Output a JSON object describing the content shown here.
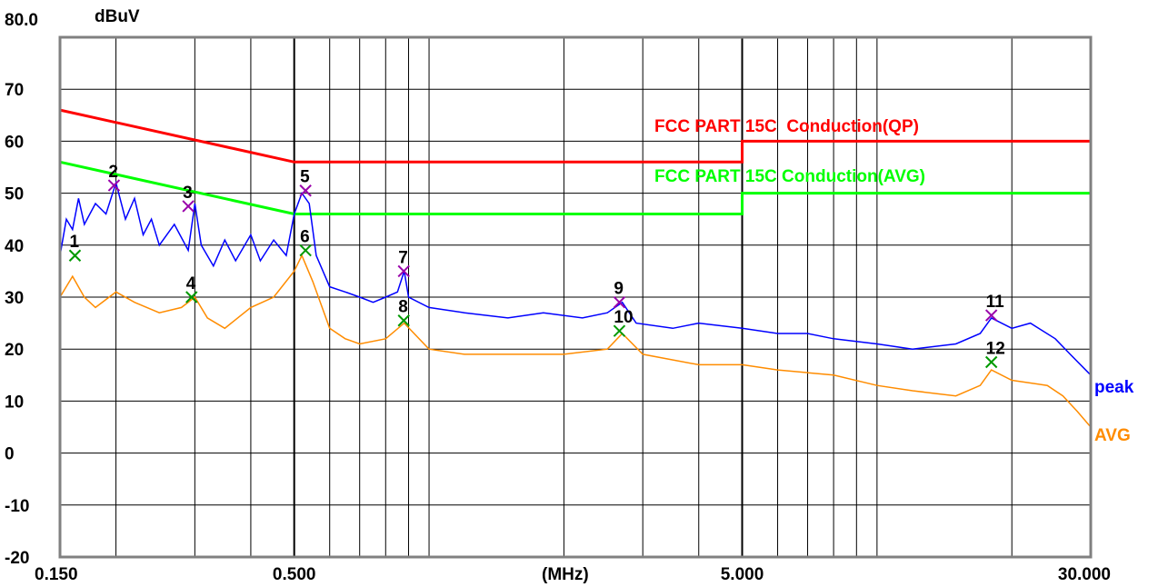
{
  "chart_data": {
    "type": "line",
    "ylabel": "dBuV",
    "xlabel": "(MHz)",
    "x_scale": "log",
    "xlim": [
      0.15,
      30
    ],
    "ylim": [
      -20,
      80
    ],
    "y_top_label": "80.0",
    "y_ticks": [
      "70",
      "60",
      "50",
      "40",
      "30",
      "20",
      "10",
      "0",
      "-10",
      "-20"
    ],
    "x_tick_labels": [
      {
        "value": 0.15,
        "label": "0.150"
      },
      {
        "value": 0.5,
        "label": "0.500"
      },
      {
        "value": 5,
        "label": "5.000"
      },
      {
        "value": 30,
        "label": "30.000"
      }
    ],
    "grid": true,
    "limits": [
      {
        "name": "FCC PART 15C  Conduction(QP)",
        "color": "#ff0000",
        "points": [
          [
            0.15,
            66
          ],
          [
            0.5,
            56
          ],
          [
            5,
            56
          ],
          [
            5,
            60
          ],
          [
            30,
            60
          ]
        ]
      },
      {
        "name": "FCC PART 15C Conduction(AVG)",
        "color": "#00ff00",
        "points": [
          [
            0.15,
            56
          ],
          [
            0.5,
            46
          ],
          [
            5,
            46
          ],
          [
            5,
            50
          ],
          [
            30,
            50
          ]
        ]
      }
    ],
    "series": [
      {
        "name": "peak",
        "color": "#0000ff",
        "points": [
          [
            0.15,
            38
          ],
          [
            0.155,
            45
          ],
          [
            0.16,
            43
          ],
          [
            0.165,
            49
          ],
          [
            0.17,
            44
          ],
          [
            0.18,
            48
          ],
          [
            0.19,
            46
          ],
          [
            0.2,
            52
          ],
          [
            0.21,
            45
          ],
          [
            0.22,
            49
          ],
          [
            0.23,
            42
          ],
          [
            0.24,
            45
          ],
          [
            0.25,
            40
          ],
          [
            0.27,
            44
          ],
          [
            0.29,
            39
          ],
          [
            0.3,
            48
          ],
          [
            0.31,
            40
          ],
          [
            0.33,
            36
          ],
          [
            0.35,
            41
          ],
          [
            0.37,
            37
          ],
          [
            0.4,
            42
          ],
          [
            0.42,
            37
          ],
          [
            0.45,
            41
          ],
          [
            0.48,
            38
          ],
          [
            0.5,
            46
          ],
          [
            0.52,
            50
          ],
          [
            0.54,
            48
          ],
          [
            0.56,
            38
          ],
          [
            0.6,
            32
          ],
          [
            0.65,
            31
          ],
          [
            0.7,
            30
          ],
          [
            0.75,
            29
          ],
          [
            0.8,
            30
          ],
          [
            0.85,
            31
          ],
          [
            0.88,
            35
          ],
          [
            0.9,
            30
          ],
          [
            1.0,
            28
          ],
          [
            1.2,
            27
          ],
          [
            1.5,
            26
          ],
          [
            1.8,
            27
          ],
          [
            2.2,
            26
          ],
          [
            2.5,
            27
          ],
          [
            2.7,
            29
          ],
          [
            2.9,
            25
          ],
          [
            3.5,
            24
          ],
          [
            4.0,
            25
          ],
          [
            5.0,
            24
          ],
          [
            6.0,
            23
          ],
          [
            7.0,
            23
          ],
          [
            8.0,
            22
          ],
          [
            10.0,
            21
          ],
          [
            12.0,
            20
          ],
          [
            15.0,
            21
          ],
          [
            17.0,
            23
          ],
          [
            18.0,
            26
          ],
          [
            20.0,
            24
          ],
          [
            22.0,
            25
          ],
          [
            25.0,
            22
          ],
          [
            27.0,
            19
          ],
          [
            30.0,
            15
          ]
        ]
      },
      {
        "name": "AVG",
        "color": "#ff8c00",
        "points": [
          [
            0.15,
            30
          ],
          [
            0.16,
            34
          ],
          [
            0.17,
            30
          ],
          [
            0.18,
            28
          ],
          [
            0.2,
            31
          ],
          [
            0.22,
            29
          ],
          [
            0.25,
            27
          ],
          [
            0.28,
            28
          ],
          [
            0.3,
            30
          ],
          [
            0.32,
            26
          ],
          [
            0.35,
            24
          ],
          [
            0.4,
            28
          ],
          [
            0.45,
            30
          ],
          [
            0.5,
            35
          ],
          [
            0.52,
            38
          ],
          [
            0.55,
            33
          ],
          [
            0.6,
            24
          ],
          [
            0.65,
            22
          ],
          [
            0.7,
            21
          ],
          [
            0.8,
            22
          ],
          [
            0.88,
            25
          ],
          [
            1.0,
            20
          ],
          [
            1.2,
            19
          ],
          [
            1.5,
            19
          ],
          [
            2.0,
            19
          ],
          [
            2.5,
            20
          ],
          [
            2.7,
            23
          ],
          [
            3.0,
            19
          ],
          [
            4.0,
            17
          ],
          [
            5.0,
            17
          ],
          [
            6.0,
            16
          ],
          [
            8.0,
            15
          ],
          [
            10.0,
            13
          ],
          [
            12.0,
            12
          ],
          [
            15.0,
            11
          ],
          [
            17.0,
            13
          ],
          [
            18.0,
            16
          ],
          [
            20.0,
            14
          ],
          [
            24.0,
            13
          ],
          [
            26.0,
            11
          ],
          [
            28.0,
            8
          ],
          [
            30.0,
            5
          ]
        ]
      }
    ],
    "markers": [
      {
        "label": "1",
        "freq": 0.162,
        "level": 38.0,
        "type": "avg"
      },
      {
        "label": "2",
        "freq": 0.198,
        "level": 51.5,
        "type": "peak"
      },
      {
        "label": "3",
        "freq": 0.29,
        "level": 47.5,
        "type": "peak"
      },
      {
        "label": "4",
        "freq": 0.295,
        "level": 30.0,
        "type": "avg"
      },
      {
        "label": "5",
        "freq": 0.53,
        "level": 50.5,
        "type": "peak"
      },
      {
        "label": "6",
        "freq": 0.53,
        "level": 39.0,
        "type": "avg"
      },
      {
        "label": "7",
        "freq": 0.878,
        "level": 35.0,
        "type": "peak"
      },
      {
        "label": "8",
        "freq": 0.878,
        "level": 25.5,
        "type": "avg"
      },
      {
        "label": "9",
        "freq": 2.66,
        "level": 29.0,
        "type": "peak"
      },
      {
        "label": "10",
        "freq": 2.66,
        "level": 23.5,
        "type": "avg"
      },
      {
        "label": "11",
        "freq": 18.0,
        "level": 26.5,
        "type": "peak"
      },
      {
        "label": "12",
        "freq": 18.0,
        "level": 17.5,
        "type": "avg"
      }
    ],
    "marker_colors": {
      "peak": "#9900aa",
      "avg": "#009900"
    }
  }
}
